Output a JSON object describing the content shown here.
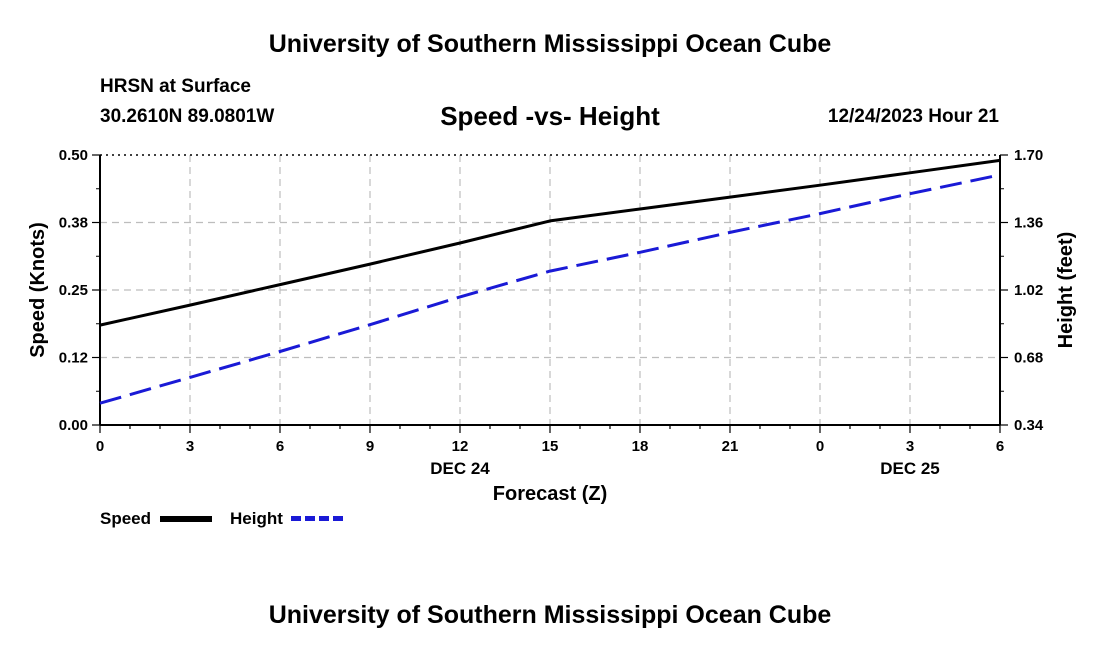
{
  "header": {
    "title": "University of Southern Mississippi Ocean Cube",
    "station": "HRSN at Surface",
    "coords": "30.2610N  89.0801W",
    "datetime": "12/24/2023 Hour 21"
  },
  "footer": {
    "title": "University of Southern Mississippi Ocean Cube"
  },
  "legend": {
    "speed_label": "Speed",
    "height_label": "Height"
  },
  "colors": {
    "speed": "#000000",
    "height": "#1a1ad6",
    "grid": "#bdbdbd"
  },
  "chart_data": {
    "type": "line",
    "title": "Speed -vs- Height",
    "xlabel": "Forecast (Z)",
    "ylabel": "Speed (Knots)",
    "y2label": "Height (feet)",
    "x": [
      0,
      3,
      6,
      9,
      12,
      15,
      18,
      21,
      24,
      27,
      30
    ],
    "x_tick_labels": [
      "0",
      "3",
      "6",
      "9",
      "12",
      "15",
      "18",
      "21",
      "0",
      "3",
      "6"
    ],
    "x_date_labels": [
      {
        "at": 12,
        "label": "DEC 24"
      },
      {
        "at": 27,
        "label": "DEC 25"
      }
    ],
    "xlim": [
      0,
      30
    ],
    "ylim": [
      0,
      0.5
    ],
    "y_ticks": [
      0.0,
      0.125,
      0.25,
      0.375,
      0.5
    ],
    "y_tick_labels": [
      "0.00",
      "0.12",
      "0.25",
      "0.38",
      "0.50"
    ],
    "y2lim": [
      0.34,
      1.7
    ],
    "y2_ticks": [
      0.34,
      0.68,
      1.02,
      1.36,
      1.7
    ],
    "y2_tick_labels": [
      "0.34",
      "0.68",
      "1.02",
      "1.36",
      "1.70"
    ],
    "grid": true,
    "series": [
      {
        "name": "Speed",
        "axis": "left",
        "style": "solid",
        "x": [
          0,
          3,
          6,
          9,
          12,
          15,
          18,
          21,
          24,
          27,
          30
        ],
        "values": [
          0.185,
          0.222,
          0.26,
          0.298,
          0.337,
          0.378,
          0.4,
          0.422,
          0.444,
          0.467,
          0.49
        ]
      },
      {
        "name": "Height",
        "axis": "right",
        "style": "dashed",
        "x": [
          0,
          3,
          6,
          9,
          12,
          15,
          18,
          21,
          24,
          27,
          30
        ],
        "values": [
          0.45,
          0.58,
          0.71,
          0.845,
          0.985,
          1.115,
          1.21,
          1.31,
          1.405,
          1.505,
          1.6
        ]
      }
    ]
  }
}
